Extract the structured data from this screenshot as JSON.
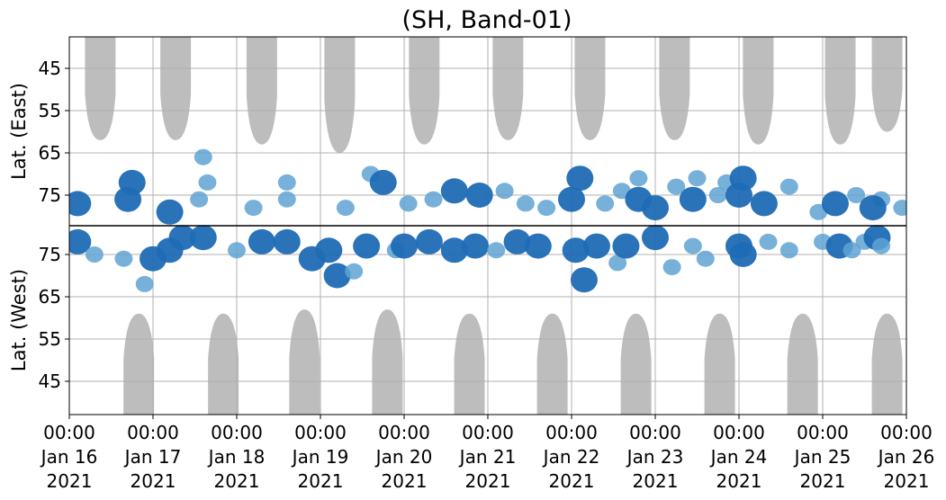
{
  "chart_data": {
    "type": "heatmap",
    "title": "(SH, Band-01)",
    "ylabel_top": "Lat. (East)",
    "ylabel_bottom": "Lat. (West)",
    "yticks_east": [
      "45",
      "55",
      "65",
      "75"
    ],
    "yticks_west": [
      "75",
      "65",
      "55",
      "45"
    ],
    "xticks": [
      {
        "time": "00:00",
        "date": "Jan 16",
        "year": "2021"
      },
      {
        "time": "00:00",
        "date": "Jan 17",
        "year": "2021"
      },
      {
        "time": "00:00",
        "date": "Jan 18",
        "year": "2021"
      },
      {
        "time": "00:00",
        "date": "Jan 19",
        "year": "2021"
      },
      {
        "time": "00:00",
        "date": "Jan 20",
        "year": "2021"
      },
      {
        "time": "00:00",
        "date": "Jan 21",
        "year": "2021"
      },
      {
        "time": "00:00",
        "date": "Jan 22",
        "year": "2021"
      },
      {
        "time": "00:00",
        "date": "Jan 23",
        "year": "2021"
      },
      {
        "time": "00:00",
        "date": "Jan 24",
        "year": "2021"
      },
      {
        "time": "00:00",
        "date": "Jan 25",
        "year": "2021"
      },
      {
        "time": "00:00",
        "date": "Jan 26",
        "year": "2021"
      }
    ],
    "xlim": [
      "2021-01-16 00:00",
      "2021-01-26 00:00"
    ],
    "grid": true,
    "colors": {
      "no_data": "#bdbdbd",
      "strong": "#1f6bb5",
      "weak": "#5fa3d3",
      "divider": "#000000",
      "grid": "#b0b0b0"
    },
    "no_data_east": [
      {
        "day": 0.37,
        "lat_min": 62
      },
      {
        "day": 1.27,
        "lat_min": 62
      },
      {
        "day": 2.3,
        "lat_min": 63
      },
      {
        "day": 3.23,
        "lat_min": 65
      },
      {
        "day": 4.24,
        "lat_min": 63
      },
      {
        "day": 5.24,
        "lat_min": 62
      },
      {
        "day": 6.22,
        "lat_min": 62
      },
      {
        "day": 7.23,
        "lat_min": 62
      },
      {
        "day": 8.23,
        "lat_min": 63
      },
      {
        "day": 9.21,
        "lat_min": 63
      },
      {
        "day": 9.77,
        "lat_min": 60
      }
    ],
    "no_data_west": [
      {
        "day": 0.83,
        "lat_min": 61
      },
      {
        "day": 1.84,
        "lat_min": 61
      },
      {
        "day": 2.81,
        "lat_min": 62
      },
      {
        "day": 3.8,
        "lat_min": 62
      },
      {
        "day": 4.78,
        "lat_min": 61
      },
      {
        "day": 5.77,
        "lat_min": 61
      },
      {
        "day": 6.77,
        "lat_min": 61
      },
      {
        "day": 7.77,
        "lat_min": 61
      },
      {
        "day": 8.76,
        "lat_min": 61
      },
      {
        "day": 9.77,
        "lat_min": 61
      }
    ],
    "events": [
      {
        "side": "east",
        "day": 0.1,
        "lat": 77,
        "strong": true
      },
      {
        "side": "west",
        "day": 0.1,
        "lat": 78,
        "strong": true
      },
      {
        "side": "west",
        "day": 0.3,
        "lat": 75,
        "strong": false
      },
      {
        "side": "east",
        "day": 0.7,
        "lat": 76,
        "strong": true
      },
      {
        "side": "east",
        "day": 0.75,
        "lat": 72,
        "strong": true
      },
      {
        "side": "west",
        "day": 0.65,
        "lat": 74,
        "strong": false
      },
      {
        "side": "west",
        "day": 0.9,
        "lat": 68,
        "strong": false
      },
      {
        "side": "west",
        "day": 1.0,
        "lat": 74,
        "strong": true
      },
      {
        "side": "east",
        "day": 1.2,
        "lat": 79,
        "strong": true
      },
      {
        "side": "west",
        "day": 1.2,
        "lat": 76,
        "strong": true
      },
      {
        "side": "west",
        "day": 1.35,
        "lat": 79,
        "strong": true
      },
      {
        "side": "east",
        "day": 1.55,
        "lat": 76,
        "strong": false
      },
      {
        "side": "west",
        "day": 1.6,
        "lat": 79,
        "strong": true
      },
      {
        "side": "east",
        "day": 1.6,
        "lat": 66,
        "strong": false
      },
      {
        "side": "east",
        "day": 1.65,
        "lat": 72,
        "strong": false
      },
      {
        "side": "west",
        "day": 2.0,
        "lat": 76,
        "strong": false
      },
      {
        "side": "east",
        "day": 2.2,
        "lat": 78,
        "strong": false
      },
      {
        "side": "west",
        "day": 2.3,
        "lat": 78,
        "strong": true
      },
      {
        "side": "east",
        "day": 2.6,
        "lat": 76,
        "strong": false
      },
      {
        "side": "east",
        "day": 2.6,
        "lat": 72,
        "strong": false
      },
      {
        "side": "west",
        "day": 2.6,
        "lat": 78,
        "strong": true
      },
      {
        "side": "west",
        "day": 2.9,
        "lat": 74,
        "strong": true
      },
      {
        "side": "west",
        "day": 3.1,
        "lat": 76,
        "strong": true
      },
      {
        "side": "west",
        "day": 3.2,
        "lat": 70,
        "strong": true
      },
      {
        "side": "west",
        "day": 3.4,
        "lat": 71,
        "strong": false
      },
      {
        "side": "east",
        "day": 3.3,
        "lat": 78,
        "strong": false
      },
      {
        "side": "west",
        "day": 3.55,
        "lat": 77,
        "strong": true
      },
      {
        "side": "east",
        "day": 3.6,
        "lat": 70,
        "strong": false
      },
      {
        "side": "east",
        "day": 3.75,
        "lat": 72,
        "strong": true
      },
      {
        "side": "west",
        "day": 3.9,
        "lat": 76,
        "strong": false
      },
      {
        "side": "east",
        "day": 4.05,
        "lat": 77,
        "strong": false
      },
      {
        "side": "west",
        "day": 4.0,
        "lat": 77,
        "strong": true
      },
      {
        "side": "west",
        "day": 4.3,
        "lat": 78,
        "strong": true
      },
      {
        "side": "east",
        "day": 4.35,
        "lat": 76,
        "strong": false
      },
      {
        "side": "east",
        "day": 4.6,
        "lat": 74,
        "strong": true
      },
      {
        "side": "west",
        "day": 4.6,
        "lat": 76,
        "strong": true
      },
      {
        "side": "west",
        "day": 4.85,
        "lat": 77,
        "strong": true
      },
      {
        "side": "east",
        "day": 4.9,
        "lat": 75,
        "strong": true
      },
      {
        "side": "west",
        "day": 5.1,
        "lat": 76,
        "strong": false
      },
      {
        "side": "east",
        "day": 5.2,
        "lat": 74,
        "strong": false
      },
      {
        "side": "east",
        "day": 5.45,
        "lat": 77,
        "strong": false
      },
      {
        "side": "west",
        "day": 5.35,
        "lat": 78,
        "strong": true
      },
      {
        "side": "west",
        "day": 5.6,
        "lat": 77,
        "strong": true
      },
      {
        "side": "east",
        "day": 5.7,
        "lat": 78,
        "strong": false
      },
      {
        "side": "east",
        "day": 6.0,
        "lat": 76,
        "strong": true
      },
      {
        "side": "east",
        "day": 6.1,
        "lat": 71,
        "strong": true
      },
      {
        "side": "west",
        "day": 6.05,
        "lat": 76,
        "strong": true
      },
      {
        "side": "west",
        "day": 6.15,
        "lat": 69,
        "strong": true
      },
      {
        "side": "west",
        "day": 6.3,
        "lat": 77,
        "strong": true
      },
      {
        "side": "east",
        "day": 6.4,
        "lat": 77,
        "strong": false
      },
      {
        "side": "west",
        "day": 6.55,
        "lat": 73,
        "strong": false
      },
      {
        "side": "east",
        "day": 6.6,
        "lat": 74,
        "strong": false
      },
      {
        "side": "west",
        "day": 6.65,
        "lat": 77,
        "strong": true
      },
      {
        "side": "east",
        "day": 6.8,
        "lat": 76,
        "strong": true
      },
      {
        "side": "east",
        "day": 6.8,
        "lat": 71,
        "strong": false
      },
      {
        "side": "east",
        "day": 7.0,
        "lat": 78,
        "strong": true
      },
      {
        "side": "west",
        "day": 7.0,
        "lat": 79,
        "strong": true
      },
      {
        "side": "west",
        "day": 7.2,
        "lat": 72,
        "strong": false
      },
      {
        "side": "east",
        "day": 7.25,
        "lat": 73,
        "strong": false
      },
      {
        "side": "east",
        "day": 7.45,
        "lat": 76,
        "strong": true
      },
      {
        "side": "east",
        "day": 7.5,
        "lat": 71,
        "strong": false
      },
      {
        "side": "west",
        "day": 7.45,
        "lat": 77,
        "strong": false
      },
      {
        "side": "west",
        "day": 7.6,
        "lat": 74,
        "strong": false
      },
      {
        "side": "east",
        "day": 7.75,
        "lat": 75,
        "strong": false
      },
      {
        "side": "east",
        "day": 7.85,
        "lat": 72,
        "strong": false
      },
      {
        "side": "east",
        "day": 8.0,
        "lat": 75,
        "strong": true
      },
      {
        "side": "east",
        "day": 8.05,
        "lat": 71,
        "strong": true
      },
      {
        "side": "west",
        "day": 8.0,
        "lat": 77,
        "strong": true
      },
      {
        "side": "west",
        "day": 8.05,
        "lat": 75,
        "strong": true
      },
      {
        "side": "east",
        "day": 8.3,
        "lat": 77,
        "strong": true
      },
      {
        "side": "west",
        "day": 8.35,
        "lat": 78,
        "strong": false
      },
      {
        "side": "west",
        "day": 8.6,
        "lat": 76,
        "strong": false
      },
      {
        "side": "east",
        "day": 8.6,
        "lat": 73,
        "strong": false
      },
      {
        "side": "east",
        "day": 8.95,
        "lat": 79,
        "strong": false
      },
      {
        "side": "west",
        "day": 9.0,
        "lat": 78,
        "strong": false
      },
      {
        "side": "east",
        "day": 9.15,
        "lat": 77,
        "strong": true
      },
      {
        "side": "west",
        "day": 9.2,
        "lat": 77,
        "strong": true
      },
      {
        "side": "east",
        "day": 9.4,
        "lat": 75,
        "strong": false
      },
      {
        "side": "west",
        "day": 9.35,
        "lat": 76,
        "strong": false
      },
      {
        "side": "west",
        "day": 9.5,
        "lat": 78,
        "strong": false
      },
      {
        "side": "east",
        "day": 9.7,
        "lat": 76,
        "strong": false
      },
      {
        "side": "east",
        "day": 9.6,
        "lat": 78,
        "strong": true
      },
      {
        "side": "west",
        "day": 9.65,
        "lat": 79,
        "strong": true
      },
      {
        "side": "west",
        "day": 9.7,
        "lat": 77,
        "strong": false
      },
      {
        "side": "east",
        "day": 9.95,
        "lat": 78,
        "strong": false
      }
    ]
  }
}
